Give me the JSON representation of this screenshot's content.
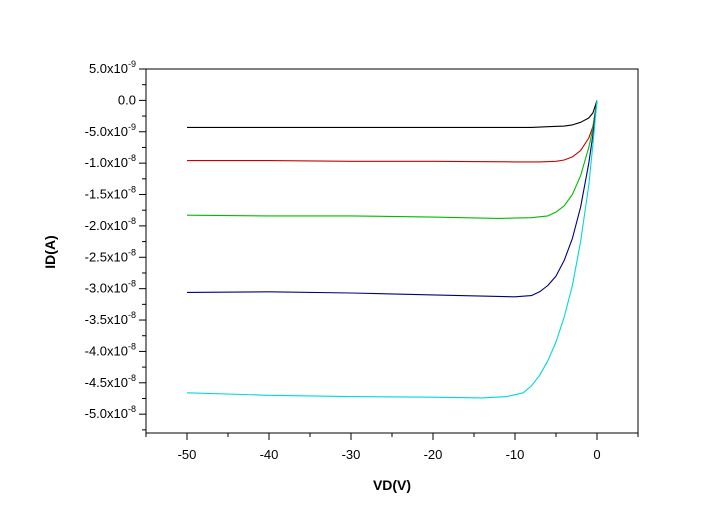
{
  "chart_data": {
    "type": "line",
    "title": "",
    "xlabel": "VD(V)",
    "ylabel": "ID(A)",
    "xlim": [
      -55,
      5
    ],
    "ylim": [
      -5.3e-08,
      5e-09
    ],
    "x_ticks": [
      {
        "value": -50,
        "label": "-50"
      },
      {
        "value": -40,
        "label": "-40"
      },
      {
        "value": -30,
        "label": "-30"
      },
      {
        "value": -20,
        "label": "-20"
      },
      {
        "value": -10,
        "label": "-10"
      },
      {
        "value": 0,
        "label": "0"
      }
    ],
    "y_ticks": [
      {
        "value": 5e-09,
        "mantissa": "5.0x10",
        "exp": "-9"
      },
      {
        "value": 0,
        "mantissa": "0.0",
        "exp": ""
      },
      {
        "value": -5e-09,
        "mantissa": "-5.0x10",
        "exp": "-9"
      },
      {
        "value": -1e-08,
        "mantissa": "-1.0x10",
        "exp": "-8"
      },
      {
        "value": -1.5e-08,
        "mantissa": "-1.5x10",
        "exp": "-8"
      },
      {
        "value": -2e-08,
        "mantissa": "-2.0x10",
        "exp": "-8"
      },
      {
        "value": -2.5e-08,
        "mantissa": "-2.5x10",
        "exp": "-8"
      },
      {
        "value": -3e-08,
        "mantissa": "-3.0x10",
        "exp": "-8"
      },
      {
        "value": -3.5e-08,
        "mantissa": "-3.5x10",
        "exp": "-8"
      },
      {
        "value": -4e-08,
        "mantissa": "-4.0x10",
        "exp": "-8"
      },
      {
        "value": -4.5e-08,
        "mantissa": "-4.5x10",
        "exp": "-8"
      },
      {
        "value": -5e-08,
        "mantissa": "-5.0x10",
        "exp": "-8"
      }
    ],
    "series": [
      {
        "name": "black",
        "color": "#000000",
        "x": [
          -50,
          -40,
          -30,
          -20,
          -10,
          -8,
          -6,
          -4,
          -3,
          -2,
          -1,
          -0.5,
          0
        ],
        "y": [
          -4.3e-09,
          -4.3e-09,
          -4.3e-09,
          -4.3e-09,
          -4.3e-09,
          -4.3e-09,
          -4.2e-09,
          -4.1e-09,
          -3.9e-09,
          -3.5e-09,
          -2.8e-09,
          -2e-09,
          0
        ]
      },
      {
        "name": "red",
        "color": "#cc0000",
        "x": [
          -50,
          -40,
          -30,
          -20,
          -10,
          -7,
          -5,
          -4,
          -3,
          -2,
          -1,
          -0.5,
          0
        ],
        "y": [
          -9.6e-09,
          -9.6e-09,
          -9.7e-09,
          -9.7e-09,
          -9.8e-09,
          -9.8e-09,
          -9.7e-09,
          -9.5e-09,
          -9e-09,
          -8e-09,
          -6e-09,
          -4.2e-09,
          0
        ]
      },
      {
        "name": "green",
        "color": "#00bb00",
        "x": [
          -50,
          -40,
          -30,
          -20,
          -12,
          -8,
          -6,
          -5,
          -4,
          -3,
          -2,
          -1,
          -0.5,
          0
        ],
        "y": [
          -1.83e-08,
          -1.84e-08,
          -1.84e-08,
          -1.86e-08,
          -1.88e-08,
          -1.87e-08,
          -1.84e-08,
          -1.78e-08,
          -1.68e-08,
          -1.5e-08,
          -1.2e-08,
          -7.5e-09,
          -4.5e-09,
          0
        ]
      },
      {
        "name": "blue",
        "color": "#000080",
        "x": [
          -50,
          -40,
          -30,
          -20,
          -10,
          -8,
          -7,
          -6,
          -5,
          -4,
          -3,
          -2,
          -1,
          -0.5,
          0
        ],
        "y": [
          -3.06e-08,
          -3.05e-08,
          -3.07e-08,
          -3.1e-08,
          -3.13e-08,
          -3.11e-08,
          -3.05e-08,
          -2.95e-08,
          -2.8e-08,
          -2.55e-08,
          -2.2e-08,
          -1.7e-08,
          -1e-08,
          -5.5e-09,
          0
        ]
      },
      {
        "name": "cyan",
        "color": "#00d8d8",
        "x": [
          -50,
          -40,
          -30,
          -20,
          -14,
          -11,
          -9,
          -8,
          -7,
          -6,
          -5,
          -4,
          -3,
          -2,
          -1,
          -0.5,
          0
        ],
        "y": [
          -4.66e-08,
          -4.7e-08,
          -4.72e-08,
          -4.73e-08,
          -4.74e-08,
          -4.72e-08,
          -4.66e-08,
          -4.55e-08,
          -4.38e-08,
          -4.15e-08,
          -3.85e-08,
          -3.45e-08,
          -2.95e-08,
          -2.25e-08,
          -1.35e-08,
          -7e-09,
          0
        ]
      }
    ]
  }
}
